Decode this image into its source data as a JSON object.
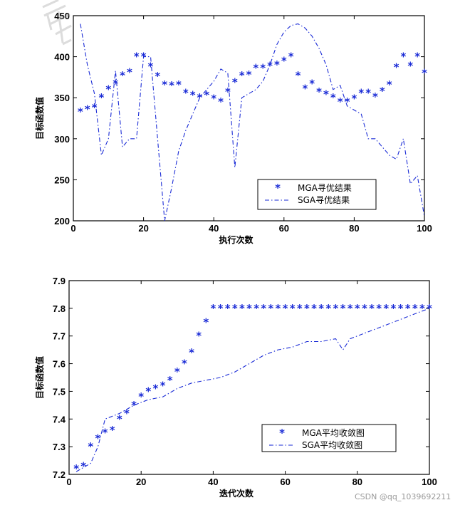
{
  "colors": {
    "marker": "#1a2bd6",
    "line": "#1a2bd6",
    "axis": "#000000"
  },
  "watermark": "CSDN @qq_1039692211",
  "chart_data": [
    {
      "type": "scatter+line",
      "xlabel": "执行次数",
      "ylabel": "目标函数值",
      "xlim": [
        0,
        100
      ],
      "ylim": [
        200,
        450
      ],
      "xticks": [
        0,
        20,
        40,
        60,
        80,
        100
      ],
      "yticks": [
        200,
        250,
        300,
        350,
        400,
        450
      ],
      "legend_position": "lower-right",
      "series": [
        {
          "name": "MGA寻优结果",
          "style": "markers",
          "marker": "*",
          "x": [
            2,
            4,
            6,
            8,
            10,
            12,
            14,
            16,
            18,
            20,
            22,
            24,
            26,
            28,
            30,
            32,
            34,
            36,
            38,
            40,
            42,
            44,
            46,
            48,
            50,
            52,
            54,
            56,
            58,
            60,
            62,
            64,
            66,
            68,
            70,
            72,
            74,
            76,
            78,
            80,
            82,
            84,
            86,
            88,
            90,
            92,
            94,
            96,
            98,
            100
          ],
          "y": [
            333,
            336,
            338,
            350,
            360,
            367,
            377,
            381,
            400,
            400,
            388,
            376,
            366,
            365,
            366,
            356,
            353,
            350,
            353,
            349,
            345,
            357,
            369,
            377,
            378,
            386,
            386,
            389,
            390,
            395,
            400,
            377,
            361,
            367,
            357,
            354,
            350,
            345,
            345,
            349,
            356,
            356,
            351,
            358,
            366,
            387,
            400,
            389,
            400,
            380
          ]
        },
        {
          "name": "SGA寻优结果",
          "style": "dash-dot",
          "x": [
            2,
            4,
            6,
            8,
            10,
            12,
            14,
            16,
            18,
            20,
            22,
            24,
            26,
            28,
            30,
            32,
            34,
            36,
            38,
            40,
            42,
            44,
            46,
            48,
            50,
            52,
            54,
            56,
            58,
            60,
            62,
            64,
            66,
            68,
            70,
            72,
            74,
            76,
            78,
            80,
            82,
            84,
            86,
            88,
            90,
            92,
            94,
            96,
            98,
            100
          ],
          "y": [
            440,
            390,
            355,
            280,
            300,
            383,
            290,
            300,
            300,
            400,
            400,
            300,
            200,
            240,
            285,
            310,
            330,
            350,
            360,
            370,
            385,
            380,
            265,
            350,
            355,
            360,
            370,
            390,
            415,
            430,
            438,
            440,
            435,
            425,
            410,
            390,
            360,
            365,
            340,
            335,
            330,
            300,
            300,
            290,
            280,
            275,
            300,
            245,
            255,
            205
          ]
        }
      ]
    },
    {
      "type": "scatter+line",
      "xlabel": "迭代次数",
      "ylabel": "目标函数值",
      "xlim": [
        0,
        100
      ],
      "ylim": [
        7.2,
        7.9
      ],
      "xticks": [
        0,
        20,
        40,
        60,
        80,
        100
      ],
      "yticks": [
        7.2,
        7.3,
        7.4,
        7.5,
        7.6,
        7.7,
        7.8,
        7.9
      ],
      "legend_position": "lower-right",
      "series": [
        {
          "name": "MGA平均收敛图",
          "style": "markers",
          "marker": "*",
          "x": [
            2,
            4,
            6,
            8,
            10,
            12,
            14,
            16,
            18,
            20,
            22,
            24,
            26,
            28,
            30,
            32,
            34,
            36,
            38,
            40,
            42,
            44,
            46,
            48,
            50,
            52,
            54,
            56,
            58,
            60,
            62,
            64,
            66,
            68,
            70,
            72,
            74,
            76,
            78,
            80,
            82,
            84,
            86,
            88,
            90,
            92,
            94,
            96,
            98,
            100
          ],
          "y": [
            7.22,
            7.23,
            7.3,
            7.33,
            7.35,
            7.36,
            7.4,
            7.42,
            7.45,
            7.48,
            7.5,
            7.51,
            7.52,
            7.54,
            7.57,
            7.6,
            7.64,
            7.7,
            7.75,
            7.8,
            7.8,
            7.8,
            7.8,
            7.8,
            7.8,
            7.8,
            7.8,
            7.8,
            7.8,
            7.8,
            7.8,
            7.8,
            7.8,
            7.8,
            7.8,
            7.8,
            7.8,
            7.8,
            7.8,
            7.8,
            7.8,
            7.8,
            7.8,
            7.8,
            7.8,
            7.8,
            7.8,
            7.8,
            7.8,
            7.8
          ]
        },
        {
          "name": "SGA平均收敛图",
          "style": "dash-dot",
          "x": [
            2,
            6,
            8,
            10,
            14,
            18,
            22,
            26,
            30,
            34,
            38,
            42,
            46,
            50,
            54,
            58,
            62,
            66,
            70,
            74,
            76,
            78,
            82,
            86,
            90,
            94,
            98,
            100
          ],
          "y": [
            7.21,
            7.24,
            7.3,
            7.4,
            7.42,
            7.45,
            7.47,
            7.48,
            7.51,
            7.53,
            7.54,
            7.55,
            7.57,
            7.6,
            7.63,
            7.65,
            7.66,
            7.68,
            7.68,
            7.69,
            7.65,
            7.69,
            7.71,
            7.73,
            7.75,
            7.77,
            7.79,
            7.8
          ]
        }
      ]
    }
  ]
}
